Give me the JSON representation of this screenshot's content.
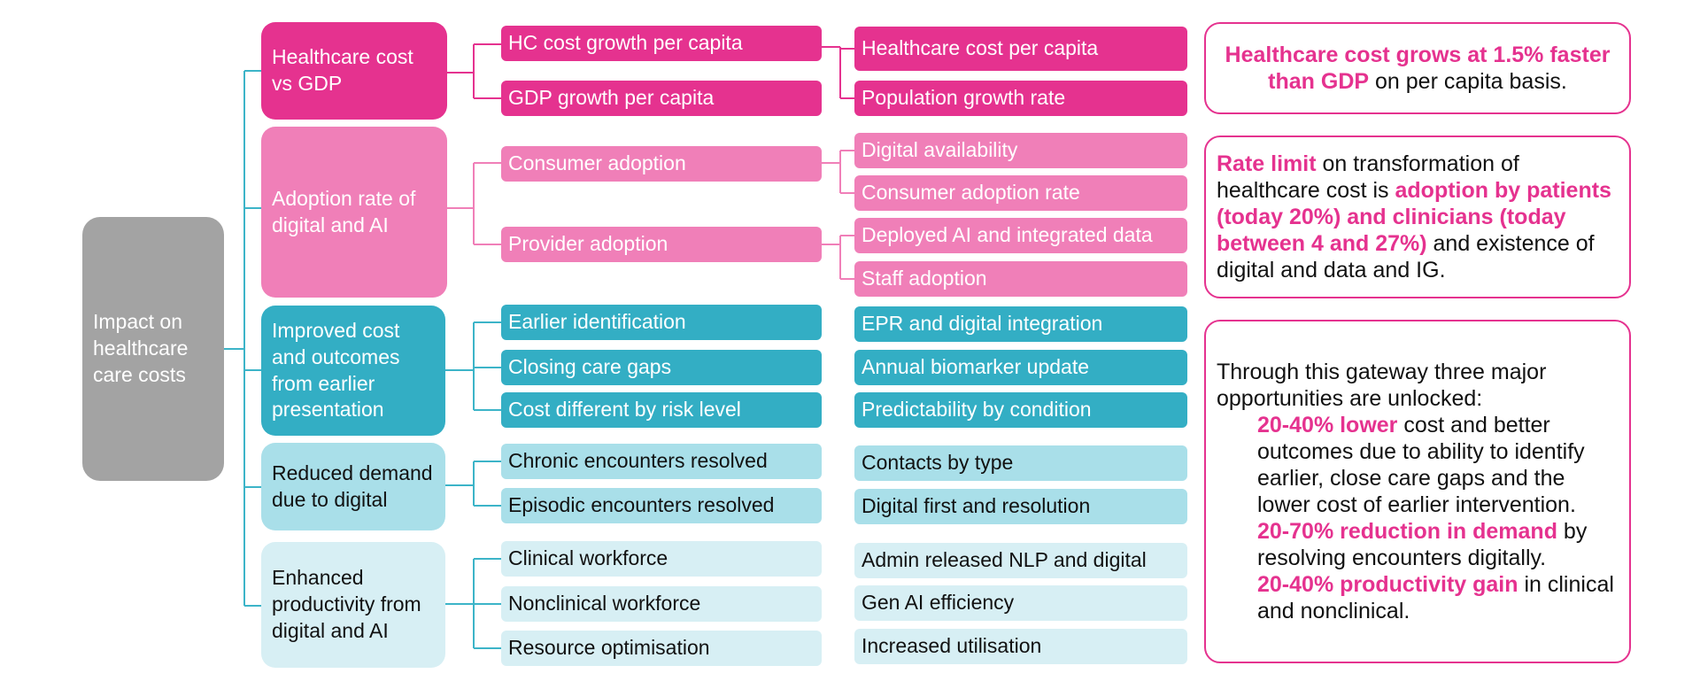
{
  "root": "Impact on healthcare care costs",
  "drivers": [
    {
      "label": "Healthcare cost vs GDP",
      "level1": [
        "HC cost growth per capita",
        "GDP growth per capita"
      ],
      "level2": [
        "Healthcare cost per capita",
        "Population growth rate"
      ]
    },
    {
      "label": "Adoption rate of digital and AI",
      "level1": [
        "Consumer adoption",
        "Provider adoption"
      ],
      "level2": [
        "Digital availability",
        "Consumer adoption rate",
        "Deployed AI and integrated data",
        "Staff adoption"
      ]
    },
    {
      "label": "Improved cost and outcomes from earlier presentation",
      "level1": [
        "Earlier identification",
        "Closing care gaps",
        "Cost different by risk level"
      ],
      "level2": [
        "EPR and digital integration",
        "Annual biomarker update",
        "Predictability by condition"
      ]
    },
    {
      "label": "Reduced demand due to digital",
      "level1": [
        "Chronic encounters resolved",
        "Episodic encounters resolved"
      ],
      "level2": [
        "Contacts by type",
        "Digital first and resolution"
      ]
    },
    {
      "label": "Enhanced productivity from digital and AI",
      "level1": [
        "Clinical workforce",
        "Nonclinical workforce",
        "Resource optimisation"
      ],
      "level2": [
        "Admin released NLP and digital",
        "Gen AI efficiency",
        "Increased utilisation"
      ]
    }
  ],
  "notes": {
    "gdp": {
      "hl1": "Healthcare cost grows at 1.5% faster",
      "hl2": "than GDP",
      "text": " on per capita basis."
    },
    "adoption": {
      "hl1": "Rate limit",
      "t1": " on transformation of healthcare cost is ",
      "hl2": "adoption by patients (today 20%) and clinicians (today between 4 and 27%)",
      "t2": " and existence of digital and data and IG."
    },
    "gateway": {
      "intro": "Through this gateway three major opportunities are unlocked:",
      "items": [
        {
          "hl": "20-40% lower",
          "text": " cost and better outcomes due to ability to identify earlier, close care gaps and the lower cost of earlier intervention."
        },
        {
          "hl": "20-70% reduction in demand",
          "text": " by resolving encounters digitally."
        },
        {
          "hl": "20-40% productivity gain",
          "text": " in clinical and nonclinical."
        }
      ]
    }
  },
  "colors": {
    "hot_pink": "#e5328f",
    "pink": "#f07fb8",
    "teal": "#33aec4",
    "light_teal": "#a9dfe9",
    "very_light_teal": "#d7eff4",
    "grey": "#a3a3a3",
    "connector_teal": "#3cb4c8",
    "connector_pink": "#f07fb8"
  }
}
